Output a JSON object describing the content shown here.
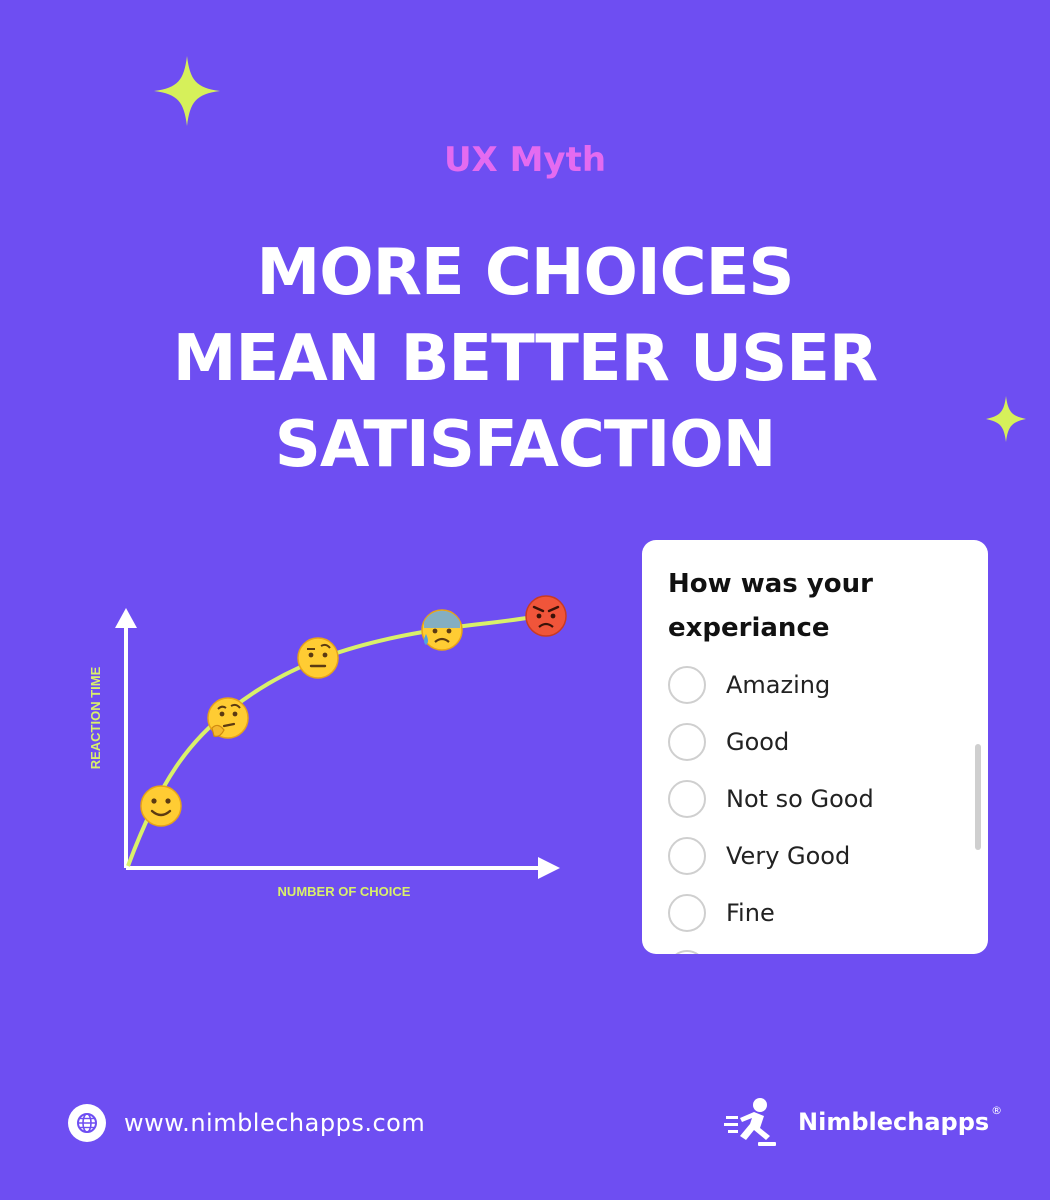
{
  "eyebrow": "UX Myth",
  "headline": [
    "MORE CHOICES",
    "MEAN BETTER USER",
    "SATISFACTION"
  ],
  "chart": {
    "xlabel": "NUMBER OF CHOICE",
    "ylabel": "REACTION TIME",
    "curve_color": "#D9F06A",
    "axis_color": "#FFFFFF",
    "emojis": [
      "slightly-smiling-face",
      "thinking-face",
      "raised-eyebrow-face",
      "anxious-sweat-face",
      "angry-face"
    ]
  },
  "survey": {
    "title": "How was your experiance",
    "options": [
      "Amazing",
      "Good",
      "Not so Good",
      "Very Good",
      "Fine"
    ]
  },
  "footer": {
    "url": "www.nimblechapps.com",
    "brand": "Nimblechapps",
    "registered": "®"
  },
  "colors": {
    "background": "#6E4EF2",
    "accent_sparkle": "#D6F05A",
    "eyebrow": "#E46BF0"
  }
}
